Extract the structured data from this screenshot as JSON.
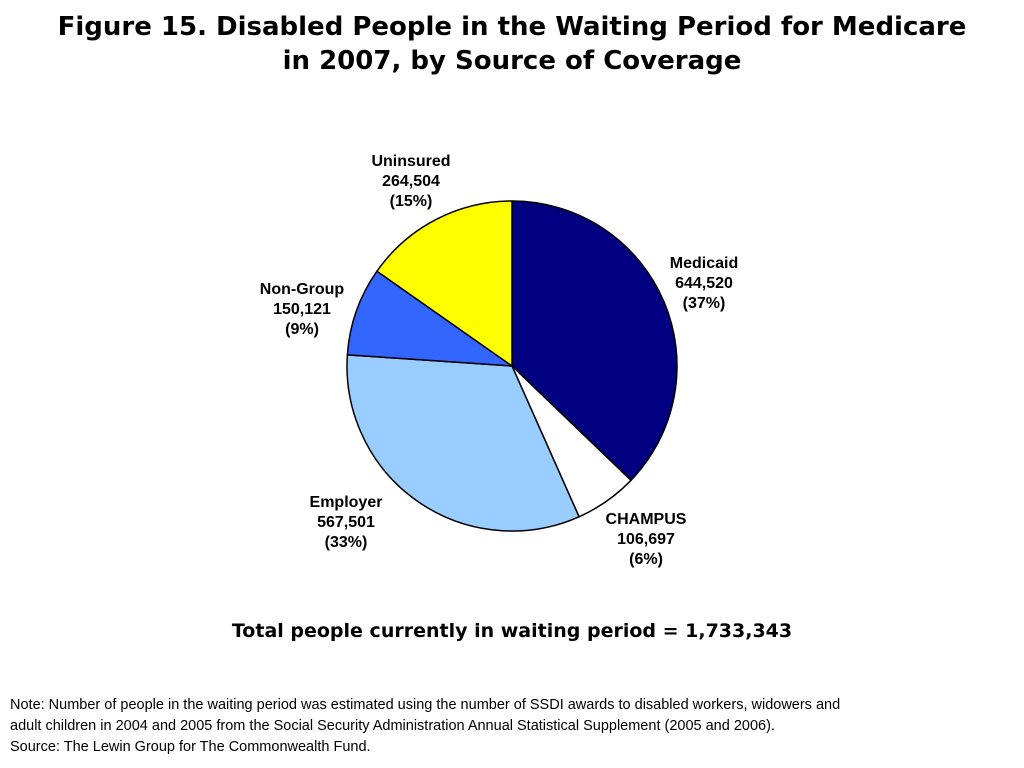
{
  "chart_data": {
    "type": "pie",
    "title_lines": [
      "Figure 15. Disabled People in the Waiting Period for Medicare",
      "in 2007, by Source of Coverage"
    ],
    "slices": [
      {
        "name": "Medicaid",
        "value": 644520,
        "value_label": "644,520",
        "pct_label": "(37%)",
        "color": "#000080"
      },
      {
        "name": "CHAMPUS",
        "value": 106697,
        "value_label": "106,697",
        "pct_label": "(6%)",
        "color": "#FFFFFF"
      },
      {
        "name": "Employer",
        "value": 567501,
        "value_label": "567,501",
        "pct_label": "(33%)",
        "color": "#99CCFF"
      },
      {
        "name": "Non-Group",
        "value": 150121,
        "value_label": "150,121",
        "pct_label": "(9%)",
        "color": "#3366FF"
      },
      {
        "name": "Uninsured",
        "value": 264504,
        "value_label": "264,504",
        "pct_label": "(15%)",
        "color": "#FFFF00"
      }
    ],
    "start": "12 o'clock",
    "direction": "clockwise",
    "total_text": "Total people currently in waiting period = 1,733,343"
  },
  "notes": [
    "Note: Number of people in the waiting period was estimated using the number of SSDI awards to disabled workers, widowers and",
    "adult children in 2004 and 2005 from the Social Security Administration Annual Statistical Supplement (2005 and 2006).",
    "Source: The Lewin Group for The Commonwealth Fund."
  ]
}
